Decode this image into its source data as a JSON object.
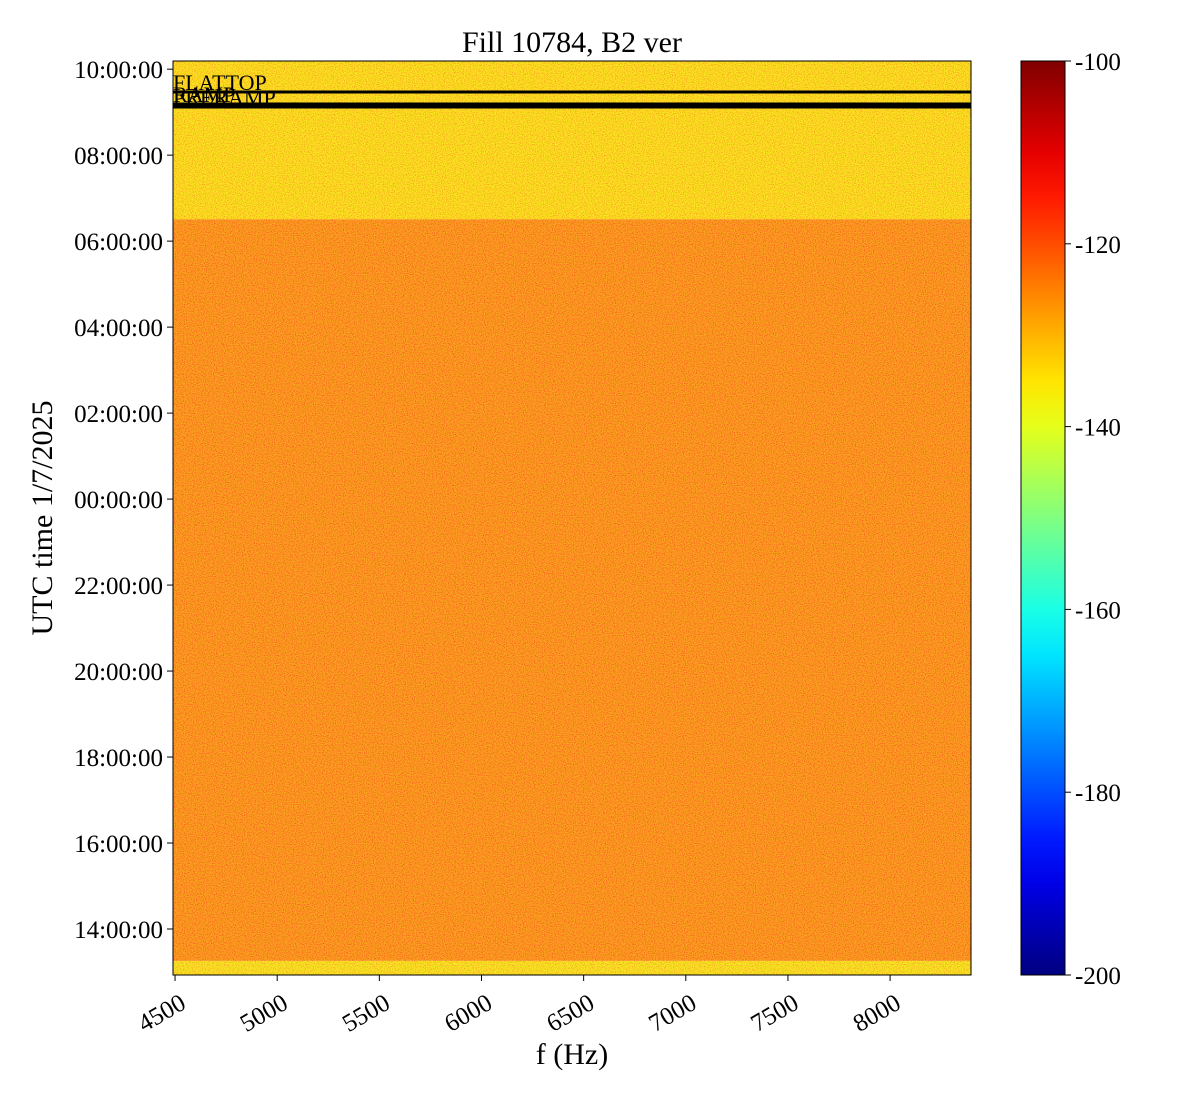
{
  "chart_data": {
    "type": "heatmap",
    "title": "Fill 10784, B2 ver",
    "xlabel": "f (Hz)",
    "ylabel": "UTC time 1/7/2025",
    "xlim": [
      4490,
      8396
    ],
    "xticks": [
      4500,
      5000,
      5500,
      6000,
      6500,
      7000,
      7500,
      8000
    ],
    "ylim": [
      12.93,
      34.19
    ],
    "yticks": [
      {
        "value": 14,
        "label": "14:00:00"
      },
      {
        "value": 16,
        "label": "16:00:00"
      },
      {
        "value": 18,
        "label": "18:00:00"
      },
      {
        "value": 20,
        "label": "20:00:00"
      },
      {
        "value": 22,
        "label": "22:00:00"
      },
      {
        "value": 24,
        "label": "00:00:00"
      },
      {
        "value": 26,
        "label": "02:00:00"
      },
      {
        "value": 28,
        "label": "04:00:00"
      },
      {
        "value": 30,
        "label": "06:00:00"
      },
      {
        "value": 32,
        "label": "08:00:00"
      },
      {
        "value": 34,
        "label": "10:00:00"
      }
    ],
    "y_edges": [
      12.93,
      13.26,
      30.51,
      34.19
    ],
    "values": [
      -138,
      -127,
      -137
    ],
    "colormap": "jet",
    "clim": [
      -200,
      -100
    ],
    "cticks": [
      -200,
      -180,
      -160,
      -140,
      -120,
      -100
    ],
    "annotations": [
      {
        "text": "FLATTOP",
        "y": 33.47
      },
      {
        "text": "RAMP",
        "y": 33.19
      },
      {
        "text": "PRERAMP",
        "y": 33.12
      }
    ]
  }
}
